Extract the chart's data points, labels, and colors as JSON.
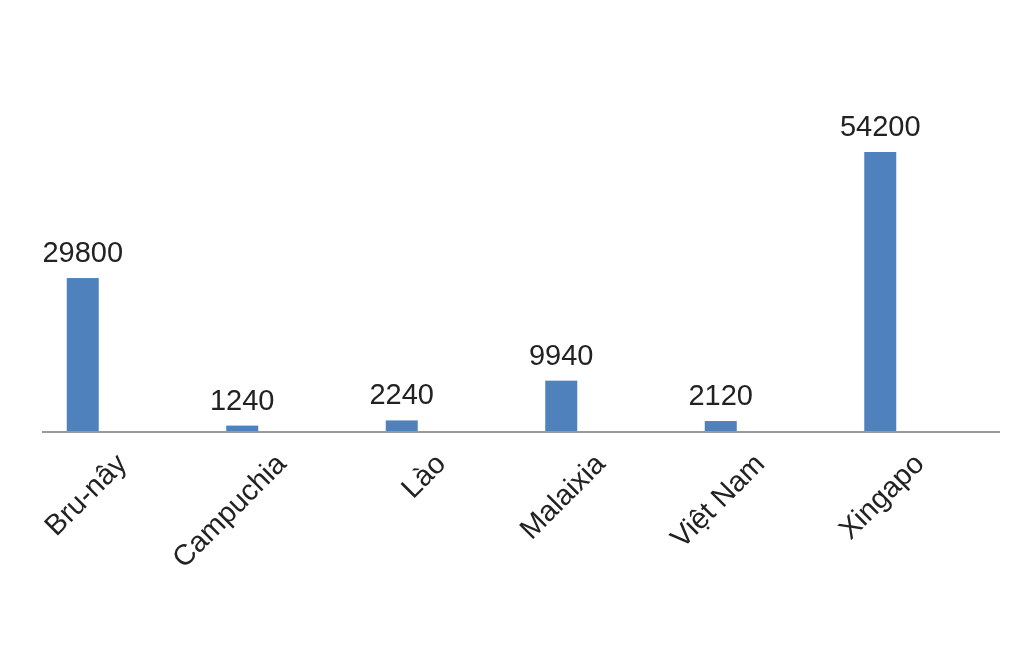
{
  "chart_data": {
    "type": "bar",
    "categories": [
      "Bru-nây",
      "Campuchia",
      "Lào",
      "Malaixia",
      "Việt Nam",
      "Xingapo"
    ],
    "values": [
      29800,
      1240,
      2240,
      9940,
      2120,
      54200
    ],
    "color": "#4f81bd",
    "data_labels": true
  }
}
